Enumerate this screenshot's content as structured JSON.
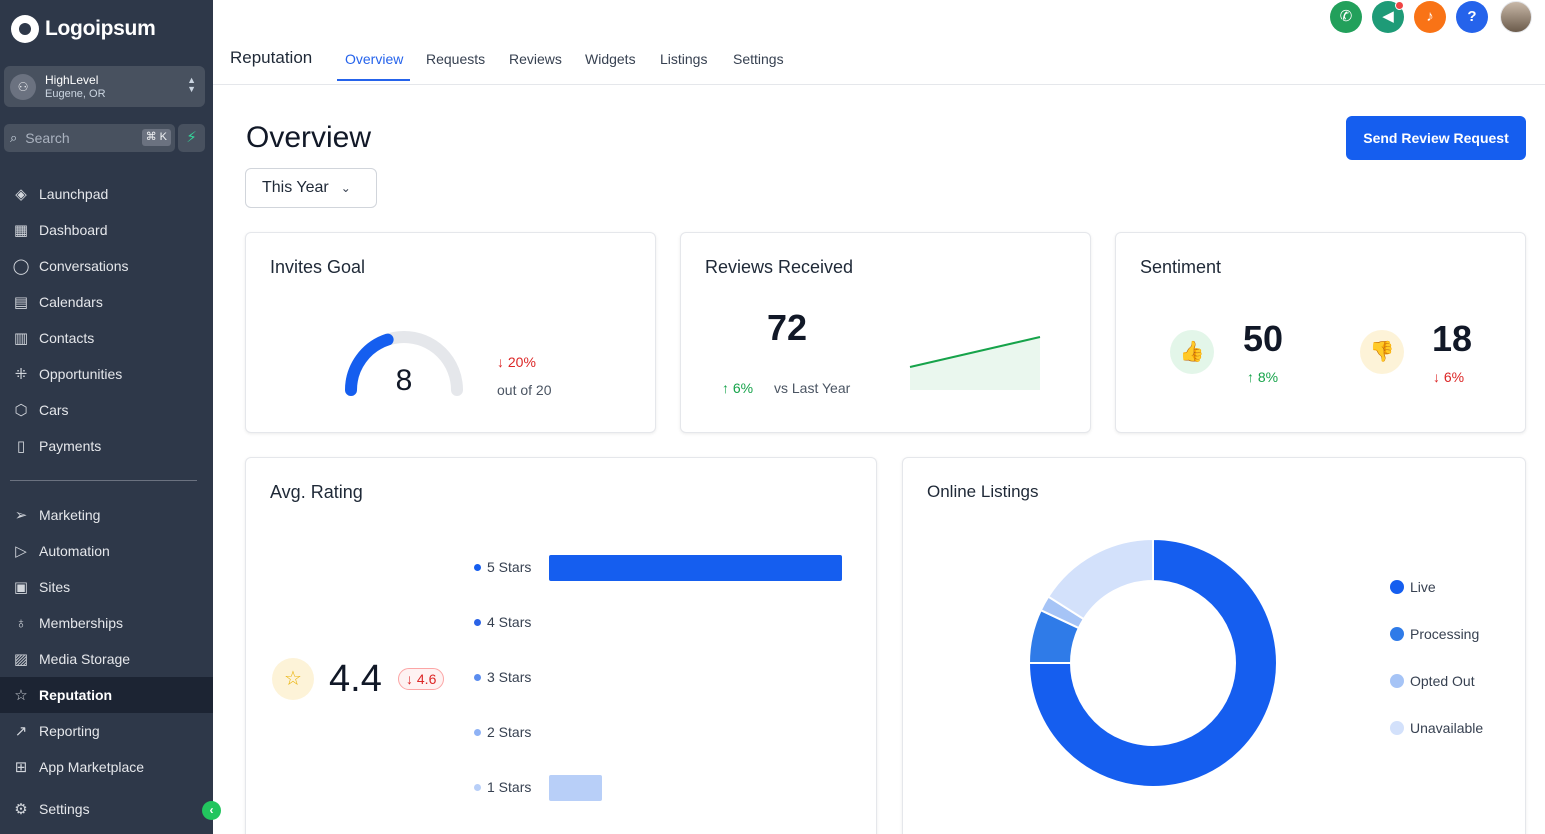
{
  "brand": {
    "name": "Logoipsum"
  },
  "account": {
    "name": "HighLevel",
    "location": "Eugene, OR"
  },
  "search": {
    "label": "Search",
    "shortcut": "⌘ K"
  },
  "nav_primary": [
    {
      "label": "Launchpad",
      "icon": "rocket-icon"
    },
    {
      "label": "Dashboard",
      "icon": "grid-icon"
    },
    {
      "label": "Conversations",
      "icon": "chat-bubble-icon"
    },
    {
      "label": "Calendars",
      "icon": "calendar-icon"
    },
    {
      "label": "Contacts",
      "icon": "contact-card-icon"
    },
    {
      "label": "Opportunities",
      "icon": "network-icon"
    },
    {
      "label": "Cars",
      "icon": "box-icon"
    },
    {
      "label": "Payments",
      "icon": "receipt-icon"
    }
  ],
  "nav_secondary": [
    {
      "label": "Marketing",
      "icon": "send-icon"
    },
    {
      "label": "Automation",
      "icon": "play-circle-icon"
    },
    {
      "label": "Sites",
      "icon": "browser-icon"
    },
    {
      "label": "Memberships",
      "icon": "award-icon"
    },
    {
      "label": "Media Storage",
      "icon": "image-icon"
    },
    {
      "label": "Reputation",
      "icon": "star-icon",
      "active": true
    },
    {
      "label": "Reporting",
      "icon": "trend-line-icon"
    },
    {
      "label": "App Marketplace",
      "icon": "apps-grid-icon"
    }
  ],
  "nav_bottom": {
    "label": "Settings",
    "icon": "gear-icon"
  },
  "header": {
    "title": "Reputation",
    "tabs": [
      "Overview",
      "Requests",
      "Reviews",
      "Widgets",
      "Listings",
      "Settings"
    ],
    "active_tab": "Overview"
  },
  "top_icons": [
    {
      "name": "phone-icon",
      "color": "#22a05b",
      "glyph": "✆"
    },
    {
      "name": "megaphone-icon",
      "color": "#1e9b77",
      "glyph": "📢"
    },
    {
      "name": "bell-icon",
      "color": "#f97316",
      "glyph": "🔔"
    },
    {
      "name": "help-icon",
      "color": "#2563eb",
      "glyph": "?"
    }
  ],
  "main": {
    "heading": "Overview",
    "send_button": "Send Review Request",
    "period": "This Year"
  },
  "invites_goal": {
    "title": "Invites Goal",
    "value": "8",
    "goal": 20,
    "delta": "20%",
    "delta_direction": "down",
    "out_of": "out of 20"
  },
  "reviews_received": {
    "title": "Reviews Received",
    "value": "72",
    "delta": "6%",
    "delta_direction": "up",
    "comparison": "vs Last Year"
  },
  "sentiment": {
    "title": "Sentiment",
    "positive": {
      "value": "50",
      "delta": "8%",
      "direction": "up"
    },
    "negative": {
      "value": "18",
      "delta": "6%",
      "direction": "down"
    }
  },
  "avg_rating": {
    "title": "Avg. Rating",
    "value": "4.4",
    "delta": "4.6",
    "delta_direction": "down"
  },
  "chart_data": [
    {
      "type": "bar",
      "orientation": "horizontal",
      "categories": [
        "5 Stars",
        "4 Stars",
        "3 Stars",
        "2 Stars",
        "1 Stars"
      ],
      "values": [
        100,
        0,
        0,
        0,
        18
      ],
      "colors": [
        "#155eef",
        "#2b63e6",
        "#5b8def",
        "#8fb2f5",
        "#b8cff8"
      ]
    },
    {
      "type": "pie",
      "title": "Online Listings",
      "categories": [
        "Live",
        "Processing",
        "Opted Out",
        "Unavailable"
      ],
      "values": [
        75,
        7,
        2,
        16
      ],
      "colors": [
        "#155eef",
        "#2f7be8",
        "#a6c4f6",
        "#d3e1fb"
      ]
    }
  ],
  "colors": {
    "primary": "#155eef",
    "sidebar": "#2e3849",
    "positive": "#16a34a",
    "negative": "#dc2626"
  }
}
